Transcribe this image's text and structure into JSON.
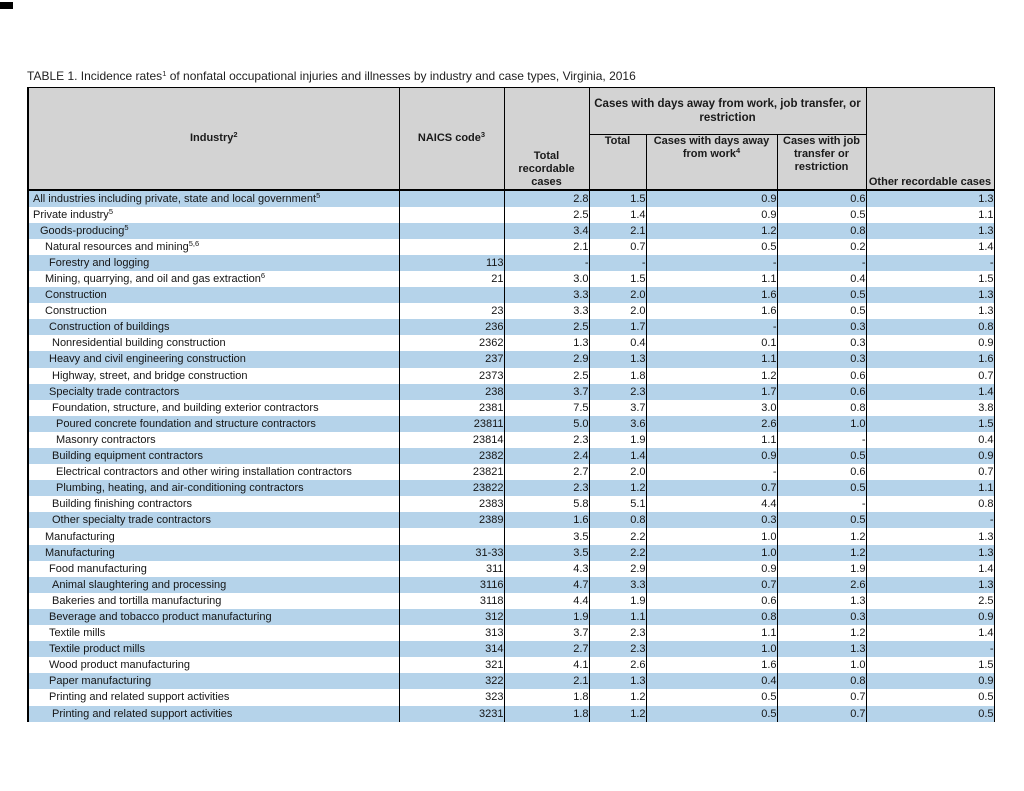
{
  "title": "TABLE 1. Incidence rates^1^ of nonfatal occupational injuries and illnesses by industry and case types, Virginia, 2016",
  "colors": {
    "row_blue": "#b5d3ea",
    "header_gray": "#d3d3d3",
    "border": "#000000"
  },
  "table": {
    "header": {
      "industry": "Industry^2^",
      "naics": "NAICS code^3^",
      "total_recordable": "Total recordable cases",
      "group": "Cases with days away from work, job transfer, or restriction",
      "group_total": "Total",
      "days_away": "Cases with days away from work^4^",
      "job_transfer": "Cases with job transfer or restriction",
      "other_recordable": "Other recordable cases"
    },
    "rows": [
      {
        "industry": "All industries including private, state and local government^5^",
        "indent": 0,
        "naics": "",
        "values": [
          "2.8",
          "1.5",
          "0.9",
          "0.6",
          "1.3"
        ]
      },
      {
        "industry": "Private industry^5^",
        "indent": 0,
        "naics": "",
        "values": [
          "2.5",
          "1.4",
          "0.9",
          "0.5",
          "1.1"
        ]
      },
      {
        "industry": "Goods-producing^5^",
        "indent": 1,
        "naics": "",
        "values": [
          "3.4",
          "2.1",
          "1.2",
          "0.8",
          "1.3"
        ]
      },
      {
        "industry": "Natural resources and mining^5,6^",
        "indent": 2,
        "naics": "",
        "values": [
          "2.1",
          "0.7",
          "0.5",
          "0.2",
          "1.4"
        ]
      },
      {
        "industry": "Forestry and logging",
        "indent": 3,
        "naics": "113",
        "values": [
          "-",
          "-",
          "-",
          "-",
          "-"
        ]
      },
      {
        "industry": "Mining, quarrying, and oil and gas extraction^6^",
        "indent": 2,
        "naics": "21",
        "values": [
          "3.0",
          "1.5",
          "1.1",
          "0.4",
          "1.5"
        ]
      },
      {
        "industry": "Construction",
        "indent": 2,
        "naics": "",
        "values": [
          "3.3",
          "2.0",
          "1.6",
          "0.5",
          "1.3"
        ]
      },
      {
        "industry": "Construction",
        "indent": 2,
        "naics": "23",
        "values": [
          "3.3",
          "2.0",
          "1.6",
          "0.5",
          "1.3"
        ]
      },
      {
        "industry": "Construction of buildings",
        "indent": 3,
        "naics": "236",
        "values": [
          "2.5",
          "1.7",
          "-",
          "0.3",
          "0.8"
        ]
      },
      {
        "industry": "Nonresidential building construction",
        "indent": 4,
        "naics": "2362",
        "values": [
          "1.3",
          "0.4",
          "0.1",
          "0.3",
          "0.9"
        ]
      },
      {
        "industry": "Heavy and civil engineering construction",
        "indent": 3,
        "naics": "237",
        "values": [
          "2.9",
          "1.3",
          "1.1",
          "0.3",
          "1.6"
        ]
      },
      {
        "industry": "Highway, street, and bridge construction",
        "indent": 4,
        "naics": "2373",
        "values": [
          "2.5",
          "1.8",
          "1.2",
          "0.6",
          "0.7"
        ]
      },
      {
        "industry": "Specialty trade contractors",
        "indent": 3,
        "naics": "238",
        "values": [
          "3.7",
          "2.3",
          "1.7",
          "0.6",
          "1.4"
        ]
      },
      {
        "industry": "Foundation, structure, and building exterior contractors",
        "indent": 4,
        "naics": "2381",
        "values": [
          "7.5",
          "3.7",
          "3.0",
          "0.8",
          "3.8"
        ]
      },
      {
        "industry": "Poured concrete foundation and structure contractors",
        "indent": 5,
        "naics": "23811",
        "values": [
          "5.0",
          "3.6",
          "2.6",
          "1.0",
          "1.5"
        ]
      },
      {
        "industry": "Masonry contractors",
        "indent": 5,
        "naics": "23814",
        "values": [
          "2.3",
          "1.9",
          "1.1",
          "-",
          "0.4"
        ]
      },
      {
        "industry": "Building equipment contractors",
        "indent": 4,
        "naics": "2382",
        "values": [
          "2.4",
          "1.4",
          "0.9",
          "0.5",
          "0.9"
        ]
      },
      {
        "industry": "Electrical contractors and other wiring installation contractors",
        "indent": 5,
        "naics": "23821",
        "values": [
          "2.7",
          "2.0",
          "-",
          "0.6",
          "0.7"
        ]
      },
      {
        "industry": "Plumbing, heating, and air-conditioning contractors",
        "indent": 5,
        "naics": "23822",
        "values": [
          "2.3",
          "1.2",
          "0.7",
          "0.5",
          "1.1"
        ]
      },
      {
        "industry": "Building finishing contractors",
        "indent": 4,
        "naics": "2383",
        "values": [
          "5.8",
          "5.1",
          "4.4",
          "-",
          "0.8"
        ]
      },
      {
        "industry": "Other specialty trade contractors",
        "indent": 4,
        "naics": "2389",
        "values": [
          "1.6",
          "0.8",
          "0.3",
          "0.5",
          "-"
        ]
      },
      {
        "industry": "Manufacturing",
        "indent": 2,
        "naics": "",
        "values": [
          "3.5",
          "2.2",
          "1.0",
          "1.2",
          "1.3"
        ]
      },
      {
        "industry": "Manufacturing",
        "indent": 2,
        "naics": "31-33",
        "values": [
          "3.5",
          "2.2",
          "1.0",
          "1.2",
          "1.3"
        ]
      },
      {
        "industry": "Food manufacturing",
        "indent": 3,
        "naics": "311",
        "values": [
          "4.3",
          "2.9",
          "0.9",
          "1.9",
          "1.4"
        ]
      },
      {
        "industry": "Animal slaughtering and processing",
        "indent": 4,
        "naics": "3116",
        "values": [
          "4.7",
          "3.3",
          "0.7",
          "2.6",
          "1.3"
        ]
      },
      {
        "industry": "Bakeries and tortilla manufacturing",
        "indent": 4,
        "naics": "3118",
        "values": [
          "4.4",
          "1.9",
          "0.6",
          "1.3",
          "2.5"
        ]
      },
      {
        "industry": "Beverage and tobacco product manufacturing",
        "indent": 3,
        "naics": "312",
        "values": [
          "1.9",
          "1.1",
          "0.8",
          "0.3",
          "0.9"
        ]
      },
      {
        "industry": "Textile mills",
        "indent": 3,
        "naics": "313",
        "values": [
          "3.7",
          "2.3",
          "1.1",
          "1.2",
          "1.4"
        ]
      },
      {
        "industry": "Textile product mills",
        "indent": 3,
        "naics": "314",
        "values": [
          "2.7",
          "2.3",
          "1.0",
          "1.3",
          "-"
        ]
      },
      {
        "industry": "Wood product manufacturing",
        "indent": 3,
        "naics": "321",
        "values": [
          "4.1",
          "2.6",
          "1.6",
          "1.0",
          "1.5"
        ]
      },
      {
        "industry": "Paper manufacturing",
        "indent": 3,
        "naics": "322",
        "values": [
          "2.1",
          "1.3",
          "0.4",
          "0.8",
          "0.9"
        ]
      },
      {
        "industry": "Printing and related support activities",
        "indent": 3,
        "naics": "323",
        "values": [
          "1.8",
          "1.2",
          "0.5",
          "0.7",
          "0.5"
        ]
      },
      {
        "industry": "Printing and related support activities",
        "indent": 4,
        "naics": "3231",
        "values": [
          "1.8",
          "1.2",
          "0.5",
          "0.7",
          "0.5"
        ]
      }
    ]
  }
}
